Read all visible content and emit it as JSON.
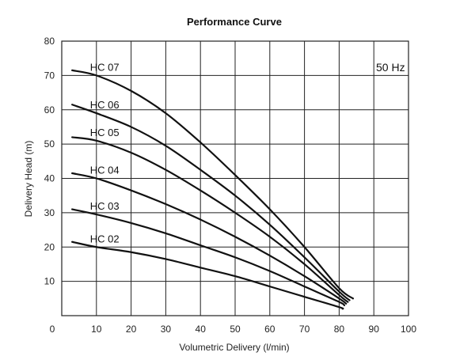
{
  "chart_data": {
    "type": "line",
    "title": "Performance Curve",
    "xlabel": "Volumetric Delivery (l/min)",
    "ylabel": "Delivery Head (m)",
    "xlim": [
      0,
      100
    ],
    "ylim": [
      0,
      80
    ],
    "xticks": [
      0,
      10,
      20,
      30,
      40,
      50,
      60,
      70,
      80,
      90,
      100
    ],
    "yticks": [
      10,
      20,
      30,
      40,
      50,
      60,
      70,
      80
    ],
    "grid": true,
    "annotation": "50 Hz",
    "series": [
      {
        "name": "HC 07",
        "x": [
          3,
          10,
          20,
          30,
          40,
          50,
          60,
          70,
          80,
          84
        ],
        "y": [
          71.5,
          70,
          65.5,
          59,
          50.5,
          41,
          31,
          20,
          8,
          5
        ]
      },
      {
        "name": "HC 06",
        "x": [
          3,
          10,
          20,
          30,
          40,
          50,
          60,
          70,
          80,
          83
        ],
        "y": [
          61.5,
          59,
          55,
          49.5,
          42.5,
          35,
          26.5,
          17,
          7,
          4.5
        ]
      },
      {
        "name": "HC 05",
        "x": [
          3,
          10,
          20,
          30,
          40,
          50,
          60,
          70,
          80,
          82.5
        ],
        "y": [
          52,
          51,
          47.5,
          42.5,
          36.5,
          30,
          23,
          15,
          6,
          4
        ]
      },
      {
        "name": "HC 04",
        "x": [
          3,
          10,
          20,
          30,
          40,
          50,
          60,
          70,
          80,
          82
        ],
        "y": [
          41.5,
          40,
          36.5,
          32.5,
          28,
          23,
          17.5,
          11.5,
          5,
          3.5
        ]
      },
      {
        "name": "HC 03",
        "x": [
          3,
          10,
          20,
          30,
          40,
          50,
          60,
          70,
          80,
          81.5
        ],
        "y": [
          31,
          29.5,
          27,
          24,
          20.5,
          17,
          13,
          8.5,
          4,
          3
        ]
      },
      {
        "name": "HC 02",
        "x": [
          3,
          10,
          20,
          30,
          40,
          50,
          60,
          70,
          80,
          81
        ],
        "y": [
          21.5,
          20,
          18.5,
          16.5,
          14,
          11.5,
          8.5,
          5.5,
          2.5,
          2
        ]
      }
    ]
  }
}
